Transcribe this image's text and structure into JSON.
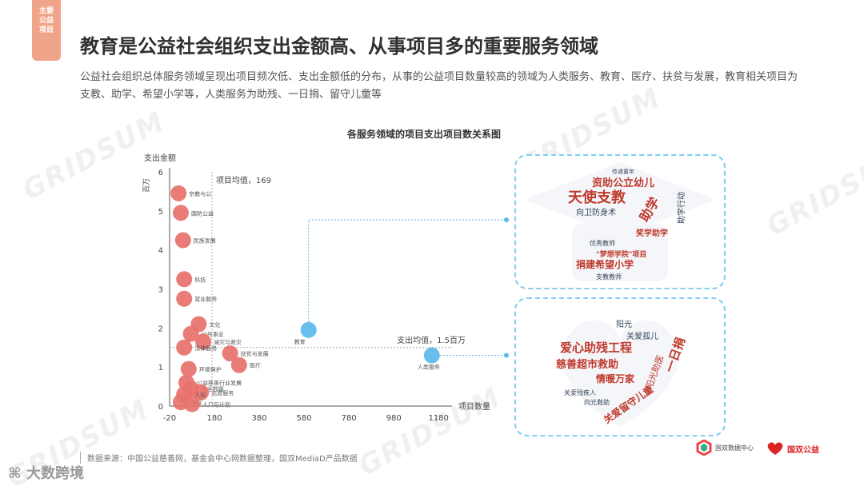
{
  "tab_label": [
    "主要",
    "公益",
    "项目"
  ],
  "title": "教育是公益社会组织支出金额高、从事项目多的重要服务领域",
  "subtitle": "公益社会组织总体服务领域呈现出项目频次低、支出金额低的分布，从事的公益项目数量较高的领域为人类服务、教育、医疗、扶贫与发展，教育相关项目为支教、助学、希望小学等，人类服务为助残、一日捐、留守儿童等",
  "source": "数据来源：中国公益慈善网，基金会中心网数据整理，国双MediaD产品数据",
  "brand_left": "大数跨境",
  "watermark_text": "GRIDSUM",
  "logo1_text": "国双数据中心",
  "logo2_text": "国双公益",
  "colors": {
    "accent": "#f0a58a",
    "red_point": "#e8716c",
    "blue_point": "#5bb8ea",
    "dashed": "#5bb8ea"
  },
  "chart_data": {
    "type": "scatter",
    "title": "各服务领域的项目支出项目数关系图",
    "xlabel": "项目数量",
    "ylabel": "支出金额",
    "yunit": "百万",
    "xlim": [
      -20,
      1240
    ],
    "ylim": [
      0,
      6
    ],
    "xticks": [
      -20,
      180,
      380,
      580,
      780,
      980,
      1180
    ],
    "yticks": [
      0,
      1,
      2,
      3,
      4,
      5,
      6
    ],
    "ref_lines": [
      {
        "axis": "x",
        "value": 169,
        "label": "项目均值，169"
      },
      {
        "axis": "y",
        "value": 1.5,
        "label": "支出均值，1.5百万"
      }
    ],
    "points": [
      {
        "label": "宗教与公",
        "x": 20,
        "y": 5.45,
        "color": "red"
      },
      {
        "label": "国防公益",
        "x": 30,
        "y": 4.95,
        "color": "red"
      },
      {
        "label": "民族发展",
        "x": 40,
        "y": 4.25,
        "color": "red"
      },
      {
        "label": "科技",
        "x": 45,
        "y": 3.25,
        "color": "red"
      },
      {
        "label": "就业服务",
        "x": 45,
        "y": 2.75,
        "color": "red"
      },
      {
        "label": "文化",
        "x": 110,
        "y": 2.1,
        "color": "red"
      },
      {
        "label": "公共事业",
        "x": 75,
        "y": 1.85,
        "color": "red"
      },
      {
        "label": "减灾与救灾",
        "x": 130,
        "y": 1.65,
        "color": "red"
      },
      {
        "label": "法律服务",
        "x": 45,
        "y": 1.5,
        "color": "red"
      },
      {
        "label": "扶贫与发展",
        "x": 250,
        "y": 1.35,
        "color": "red"
      },
      {
        "label": "医疗",
        "x": 290,
        "y": 1.05,
        "color": "red"
      },
      {
        "label": "环境保护",
        "x": 65,
        "y": 0.95,
        "color": "red"
      },
      {
        "label": "公益慈善行业发展",
        "x": 55,
        "y": 0.6,
        "color": "red"
      },
      {
        "label": "安全救援",
        "x": 75,
        "y": 0.45,
        "color": "red"
      },
      {
        "label": "志愿服务",
        "x": 120,
        "y": 0.35,
        "color": "red"
      },
      {
        "label": "人权",
        "x": 45,
        "y": 0.3,
        "color": "red"
      },
      {
        "label": "国际",
        "x": 30,
        "y": 0.1,
        "color": "red"
      },
      {
        "label": "人口与计划",
        "x": 80,
        "y": 0.05,
        "color": "red"
      },
      {
        "label": "教育",
        "x": 600,
        "y": 1.95,
        "color": "blue"
      },
      {
        "label": "人类服务",
        "x": 1150,
        "y": 1.3,
        "color": "blue"
      }
    ]
  },
  "wordcloud_education": [
    "资助公立幼儿",
    "天使支教",
    "助学",
    "助学行动",
    "向卫防身术",
    "奖学助学",
    "\"梦想学院\"项目",
    "捐建希望小学",
    "传递童年",
    "优秀教师",
    "支教教师"
  ],
  "wordcloud_humanservices": [
    "阳光",
    "关爱孤儿",
    "爱心助残工程",
    "慈善超市救助",
    "一日捐",
    "阳光助医",
    "情暖万家",
    "关爱留守儿童",
    "关爱残疾人",
    "向光救助"
  ]
}
